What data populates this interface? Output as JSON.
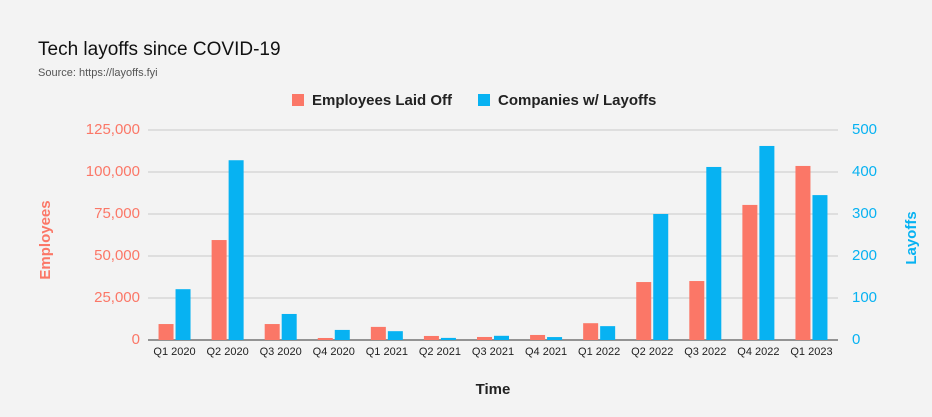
{
  "chart_data": {
    "type": "bar",
    "title": "Tech layoffs since COVID-19",
    "subtitle": "Source: https://layoffs.fyi",
    "xlabel": "Time",
    "ylabel": "Employees",
    "y2label": "Layoffs",
    "categories": [
      "Q1 2020",
      "Q2 2020",
      "Q3 2020",
      "Q4 2020",
      "Q1 2021",
      "Q2 2021",
      "Q3 2021",
      "Q4 2021",
      "Q1 2022",
      "Q2 2022",
      "Q3 2022",
      "Q4 2022",
      "Q1 2023"
    ],
    "series": [
      {
        "name": "Employees Laid Off",
        "color": "#fb7767",
        "values": [
          9500,
          59500,
          9500,
          1200,
          7800,
          2400,
          1800,
          3000,
          10000,
          34500,
          35100,
          80400,
          103600
        ]
      },
      {
        "name": "Companies w/ Layoffs",
        "color": "#07b2f2",
        "axis": "y2",
        "values": [
          121,
          428,
          62,
          24,
          21,
          5,
          10,
          7,
          33,
          300,
          412,
          462,
          345
        ]
      }
    ],
    "ylim": [
      0,
      125000
    ],
    "yticks": [
      0,
      {
        "value": 25000,
        "label": "25,000"
      },
      {
        "value": 50000,
        "label": "50,000"
      },
      {
        "value": 75000,
        "label": "75,000"
      },
      {
        "value": 100000,
        "label": "100,000"
      },
      {
        "value": 125000,
        "label": "125,000"
      }
    ],
    "y2lim": [
      0,
      500
    ],
    "y2ticks": [
      0,
      100,
      200,
      300,
      400,
      500
    ],
    "grid": true
  }
}
